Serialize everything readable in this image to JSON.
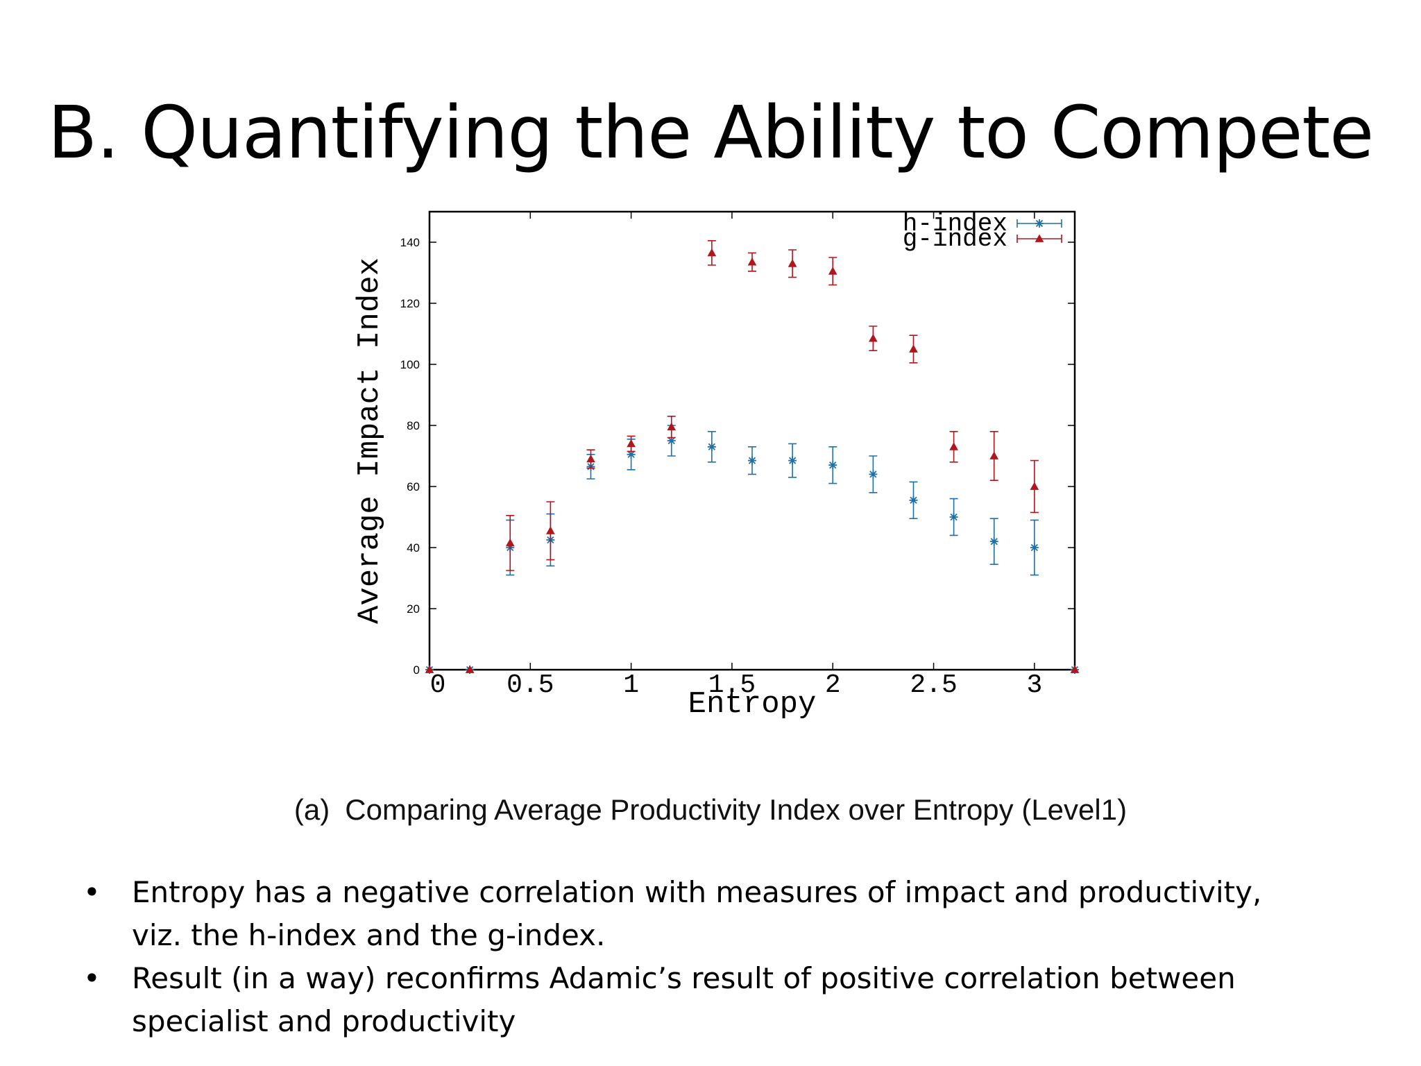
{
  "slide": {
    "title": "B. Quantifying the Ability to Compete",
    "caption_tag": "(a)",
    "caption_text": "Comparing Average Productivity Index over Entropy (Level1)",
    "bullets": [
      {
        "mark": "•",
        "lines": [
          "Entropy has a negative correlation with measures of impact and productivity,",
          "viz. the h-index and the g-index."
        ]
      },
      {
        "mark": "•",
        "lines": [
          "Result (in a way) reconfirms Adamic’s result of  positive correlation between",
          "specialist and productivity"
        ]
      }
    ]
  },
  "chart_data": {
    "type": "scatter",
    "xlabel": "Entropy",
    "ylabel": "Average Impact Index",
    "xlim": [
      0,
      3.2
    ],
    "ylim": [
      0,
      150
    ],
    "xticks": [
      0,
      0.5,
      1,
      1.5,
      2,
      2.5,
      3
    ],
    "xtick_labels": [
      "0",
      "0.5",
      "1",
      "1.5",
      "2",
      "2.5",
      "3"
    ],
    "yticks": [
      0,
      20,
      40,
      60,
      80,
      100,
      120,
      140
    ],
    "ytick_labels": [
      "0",
      "20",
      "40",
      "60",
      "80",
      "100",
      "120",
      "140"
    ],
    "legend_position": "top-right",
    "grid": false,
    "series": [
      {
        "name": "h-index",
        "color": "#1f6fa8",
        "marker": "star",
        "x": [
          0,
          0.2,
          0.4,
          0.6,
          0.8,
          1.0,
          1.2,
          1.4,
          1.6,
          1.8,
          2.0,
          2.2,
          2.4,
          2.6,
          2.8,
          3.0,
          3.2
        ],
        "y": [
          0,
          0,
          40,
          42.5,
          66.5,
          70.5,
          75,
          73,
          68.5,
          68.5,
          67,
          64,
          55.5,
          50,
          42,
          40,
          0
        ],
        "err": [
          0,
          0,
          9,
          8.5,
          4,
          5,
          5,
          5,
          4.5,
          5.5,
          6,
          6,
          6,
          6,
          7.5,
          9,
          0
        ]
      },
      {
        "name": "g-index",
        "color": "#b0161b",
        "marker": "triangle",
        "x": [
          0,
          0.2,
          0.4,
          0.6,
          0.8,
          1.0,
          1.2,
          1.4,
          1.6,
          1.8,
          2.0,
          2.2,
          2.4,
          2.6,
          2.8,
          3.0,
          3.2
        ],
        "y": [
          0,
          0,
          41.5,
          45.5,
          69,
          74,
          79.5,
          136.5,
          133.5,
          133,
          130.5,
          108.5,
          105,
          73,
          70,
          60,
          0
        ],
        "err": [
          0,
          0,
          9,
          9.5,
          3,
          2.5,
          3.5,
          4,
          3,
          4.5,
          4.5,
          4,
          4.5,
          5,
          8,
          8.5,
          0
        ]
      }
    ]
  }
}
